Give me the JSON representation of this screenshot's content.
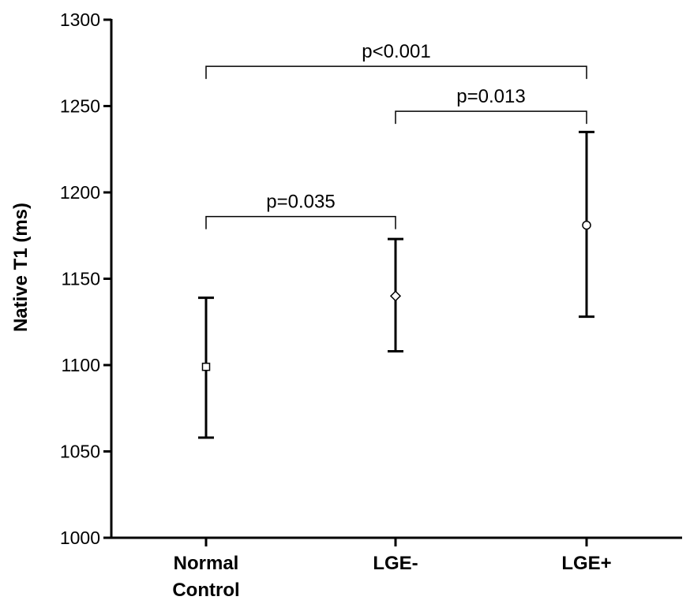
{
  "chart_data": {
    "type": "scatter",
    "title": "",
    "xlabel": "",
    "ylabel": "Native T1 (ms)",
    "ylim": [
      1000,
      1300
    ],
    "yticks": [
      1000,
      1050,
      1100,
      1150,
      1200,
      1250,
      1300
    ],
    "grid": false,
    "categories": [
      {
        "lines": [
          "Normal",
          "Control"
        ]
      },
      {
        "lines": [
          "LGE-"
        ]
      },
      {
        "lines": [
          "LGE+"
        ]
      }
    ],
    "points": [
      {
        "category_index": 0,
        "mean": 1099,
        "upper": 1139,
        "lower": 1058,
        "marker": "square"
      },
      {
        "category_index": 1,
        "mean": 1140,
        "upper": 1173,
        "lower": 1108,
        "marker": "diamond"
      },
      {
        "category_index": 2,
        "mean": 1181,
        "upper": 1235,
        "lower": 1128,
        "marker": "circle"
      }
    ],
    "comparisons": [
      {
        "from": 0,
        "to": 1,
        "level": 1186,
        "label": "p=0.035"
      },
      {
        "from": 1,
        "to": 2,
        "level": 1247,
        "label": "p=0.013"
      },
      {
        "from": 0,
        "to": 2,
        "level": 1273,
        "label": "p<0.001"
      }
    ]
  }
}
